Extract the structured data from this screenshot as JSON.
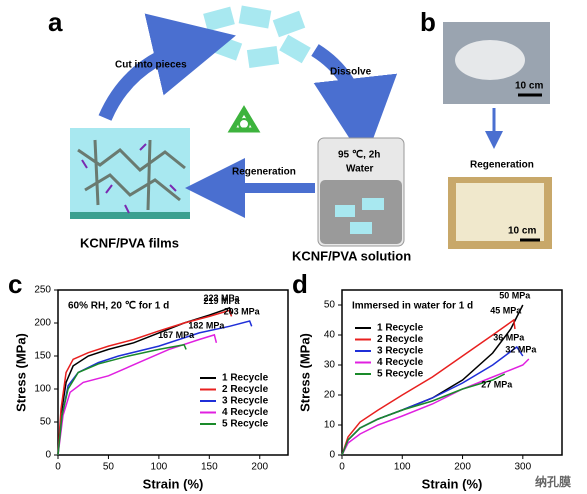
{
  "panels": {
    "a": {
      "letter": "a",
      "cut": "Cut into pieces",
      "dissolve": "Dissolve",
      "regeneration": "Regeneration",
      "films": "KCNF/PVA films",
      "solution": "KCNF/PVA solution",
      "condition": "95 ℃, 2h",
      "water": "Water"
    },
    "b": {
      "letter": "b",
      "scale_top": "10 cm",
      "regeneration": "Regeneration",
      "scale_bottom": "10 cm"
    },
    "watermark": "纳孔膜"
  },
  "chart_data": [
    {
      "type": "line",
      "letter": "c",
      "subtitle": "60% RH, 20 ℃ for 1 d",
      "xlabel": "Strain (%)",
      "ylabel": "Stress (MPa)",
      "xlim": [
        0,
        228
      ],
      "ylim": [
        0,
        250
      ],
      "xticks": [
        0,
        50,
        100,
        150,
        200
      ],
      "yticks": [
        0,
        50,
        100,
        150,
        200,
        250
      ],
      "series": [
        {
          "name": "1 Recycle",
          "color": "#000000",
          "peak_label": "223 MPa",
          "x": [
            0,
            3,
            8,
            15,
            30,
            50,
            75,
            100,
            125,
            150,
            165,
            170,
            172
          ],
          "values": [
            0,
            60,
            110,
            135,
            150,
            160,
            170,
            185,
            200,
            212,
            220,
            223,
            215
          ]
        },
        {
          "name": "2 Recycle",
          "color": "#e8201f",
          "peak_label": "219 MPa",
          "x": [
            0,
            3,
            8,
            15,
            30,
            50,
            75,
            100,
            125,
            150,
            170,
            172
          ],
          "values": [
            0,
            70,
            125,
            145,
            155,
            165,
            175,
            188,
            200,
            210,
            219,
            210
          ]
        },
        {
          "name": "3 Recycle",
          "color": "#1f2fd8",
          "peak_label": "203 MPa",
          "x": [
            0,
            4,
            10,
            20,
            40,
            60,
            100,
            140,
            170,
            190,
            192
          ],
          "values": [
            0,
            60,
            105,
            125,
            140,
            150,
            165,
            185,
            195,
            203,
            195
          ]
        },
        {
          "name": "4 Recycle",
          "color": "#e020e0",
          "peak_label": "182 MPa",
          "x": [
            0,
            5,
            12,
            25,
            50,
            80,
            110,
            140,
            155,
            157
          ],
          "values": [
            0,
            60,
            95,
            110,
            120,
            140,
            160,
            175,
            182,
            170
          ]
        },
        {
          "name": "5 Recycle",
          "color": "#1a8a2a",
          "peak_label": "167 MPa",
          "x": [
            0,
            4,
            10,
            20,
            40,
            70,
            100,
            125,
            127
          ],
          "values": [
            0,
            60,
            100,
            125,
            138,
            150,
            160,
            167,
            160
          ]
        }
      ]
    },
    {
      "type": "line",
      "letter": "d",
      "subtitle": "Immersed in water for 1 d",
      "xlabel": "Strain (%)",
      "ylabel": "Stress (MPa)",
      "xlim": [
        0,
        365
      ],
      "ylim": [
        0,
        55
      ],
      "xticks": [
        0,
        100,
        200,
        300
      ],
      "yticks": [
        0,
        10,
        20,
        30,
        40,
        50
      ],
      "series": [
        {
          "name": "1 Recycle",
          "color": "#000000",
          "peak_label": "50 MPa",
          "x": [
            0,
            10,
            30,
            60,
            100,
            150,
            200,
            250,
            280,
            300
          ],
          "values": [
            0,
            5,
            9,
            12,
            15,
            19,
            25,
            34,
            42,
            50
          ]
        },
        {
          "name": "2 Recycle",
          "color": "#e8201f",
          "peak_label": "45 MPa",
          "x": [
            0,
            10,
            30,
            60,
            100,
            150,
            200,
            250,
            285,
            287
          ],
          "values": [
            0,
            6,
            11,
            15,
            20,
            26,
            33,
            40,
            45,
            42
          ]
        },
        {
          "name": "3 Recycle",
          "color": "#1f2fd8",
          "peak_label": "36 MPa",
          "x": [
            0,
            10,
            30,
            60,
            100,
            150,
            200,
            250,
            290,
            300
          ],
          "values": [
            0,
            5,
            9,
            12,
            15,
            19,
            24,
            30,
            36,
            33
          ]
        },
        {
          "name": "4 Recycle",
          "color": "#e020e0",
          "peak_label": "32 MPa",
          "x": [
            0,
            10,
            30,
            60,
            100,
            150,
            200,
            250,
            300,
            310
          ],
          "values": [
            0,
            4,
            7,
            10,
            13,
            17,
            22,
            26,
            30,
            32
          ]
        },
        {
          "name": "5 Recycle",
          "color": "#1a8a2a",
          "peak_label": "27 MPa",
          "x": [
            0,
            10,
            30,
            60,
            100,
            150,
            200,
            250,
            270
          ],
          "values": [
            0,
            5,
            9,
            12,
            15,
            18,
            22,
            25,
            27
          ]
        }
      ]
    }
  ]
}
